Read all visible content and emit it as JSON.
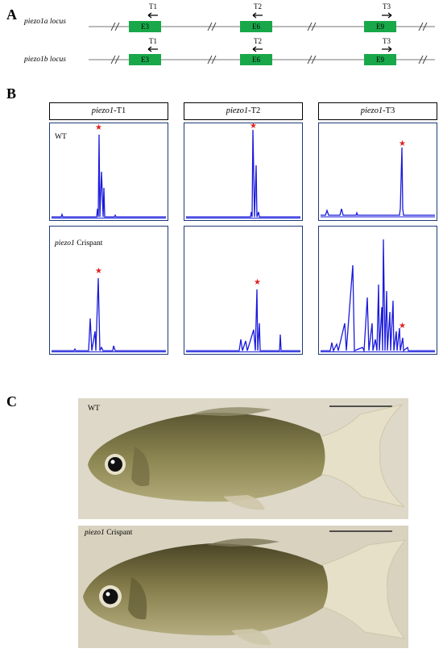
{
  "panel_a": {
    "letter": "A",
    "rows": [
      {
        "locus_label": "piezo1a locus",
        "targets": [
          {
            "t": "T1",
            "exon": "E3",
            "dir": "left"
          },
          {
            "t": "T2",
            "exon": "E6",
            "dir": "left"
          },
          {
            "t": "T3",
            "exon": "E9",
            "dir": "right"
          }
        ]
      },
      {
        "locus_label": "piezo1b locus",
        "targets": [
          {
            "t": "T1",
            "exon": "E3",
            "dir": "left"
          },
          {
            "t": "T2",
            "exon": "E6",
            "dir": "left"
          },
          {
            "t": "T3",
            "exon": "E9",
            "dir": "right"
          }
        ]
      }
    ],
    "exon_color": "#18a84a"
  },
  "panel_b": {
    "letter": "B",
    "columns": [
      {
        "gene": "piezo1",
        "suffix": "-T1"
      },
      {
        "gene": "piezo1",
        "suffix": "-T2"
      },
      {
        "gene": "piezo1",
        "suffix": "-T3"
      }
    ],
    "row_labels": {
      "wt": "WT",
      "crispant_gene": "piezo1",
      "crispant_suffix": " Crispant"
    },
    "marker": "★",
    "trace_color": "#1a1adc",
    "marker_color": "#e02020"
  },
  "panel_c": {
    "letter": "C",
    "photos": [
      {
        "label_plain": "WT",
        "label_italic": "",
        "label_rest": ""
      },
      {
        "label_plain": "",
        "label_italic": "piezo1",
        "label_rest": " Crispant"
      }
    ]
  }
}
